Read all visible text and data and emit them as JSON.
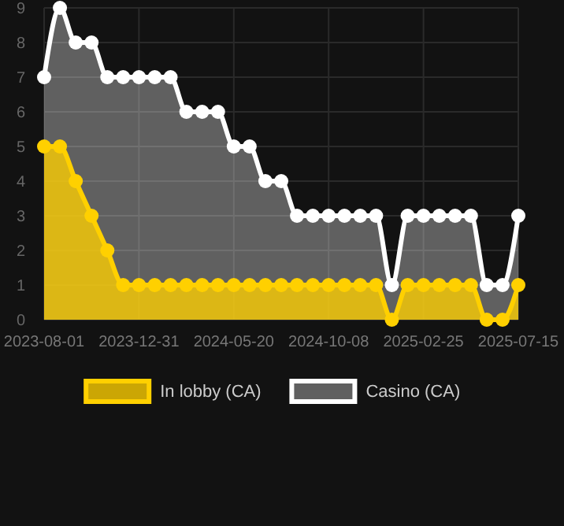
{
  "chart_data": {
    "type": "area",
    "categories": [
      "2023-08-01",
      null,
      null,
      null,
      null,
      null,
      "2023-12-31",
      null,
      null,
      null,
      null,
      null,
      "2024-05-20",
      null,
      null,
      null,
      null,
      null,
      "2024-10-08",
      null,
      null,
      null,
      null,
      null,
      "2025-02-25",
      null,
      null,
      null,
      null,
      null,
      "2025-07-15"
    ],
    "series": [
      {
        "name": "Casino (CA)",
        "color": "#ffffff",
        "values": [
          7,
          9,
          8,
          8,
          7,
          7,
          7,
          7,
          7,
          6,
          6,
          6,
          5,
          5,
          4,
          4,
          3,
          3,
          3,
          3,
          3,
          3,
          1,
          3,
          3,
          3,
          3,
          3,
          1,
          1,
          3
        ]
      },
      {
        "name": "In lobby (CA)",
        "color": "#ffd000",
        "values": [
          5,
          5,
          4,
          3,
          2,
          1,
          1,
          1,
          1,
          1,
          1,
          1,
          1,
          1,
          1,
          1,
          1,
          1,
          1,
          1,
          1,
          1,
          0,
          1,
          1,
          1,
          1,
          1,
          0,
          0,
          1
        ]
      }
    ],
    "ylim": [
      0,
      9
    ],
    "yticks": [
      0,
      1,
      2,
      3,
      4,
      5,
      6,
      7,
      8,
      9
    ],
    "grid": true,
    "legend": "bottom",
    "marker": "circle"
  }
}
